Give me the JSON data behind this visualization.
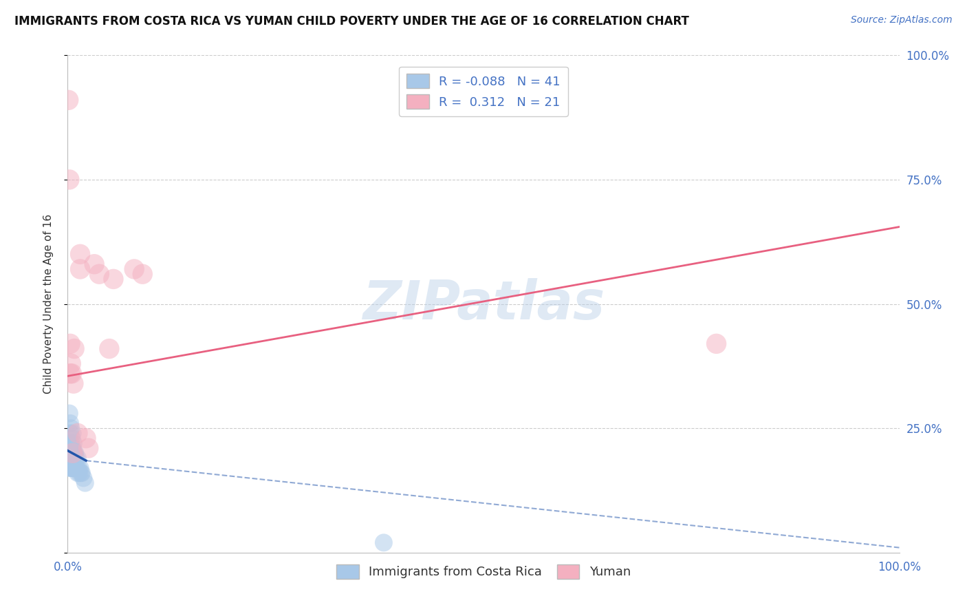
{
  "title": "IMMIGRANTS FROM COSTA RICA VS YUMAN CHILD POVERTY UNDER THE AGE OF 16 CORRELATION CHART",
  "source_text": "Source: ZipAtlas.com",
  "ylabel": "Child Poverty Under the Age of 16",
  "xlim": [
    0.0,
    1.0
  ],
  "ylim": [
    0.0,
    1.0
  ],
  "blue_R": -0.088,
  "blue_N": 41,
  "pink_R": 0.312,
  "pink_N": 21,
  "blue_color": "#a8c8e8",
  "pink_color": "#f4b0c0",
  "blue_line_color": "#2255aa",
  "pink_line_color": "#e86080",
  "grid_color": "#cccccc",
  "watermark": "ZIPatlas",
  "blue_scatter_x": [
    0.001,
    0.001,
    0.002,
    0.002,
    0.002,
    0.003,
    0.003,
    0.003,
    0.003,
    0.004,
    0.004,
    0.004,
    0.004,
    0.005,
    0.005,
    0.005,
    0.005,
    0.006,
    0.006,
    0.006,
    0.006,
    0.007,
    0.007,
    0.007,
    0.008,
    0.008,
    0.009,
    0.009,
    0.01,
    0.01,
    0.011,
    0.012,
    0.012,
    0.013,
    0.014,
    0.015,
    0.016,
    0.017,
    0.019,
    0.021,
    0.38
  ],
  "blue_scatter_y": [
    0.19,
    0.21,
    0.17,
    0.22,
    0.28,
    0.19,
    0.21,
    0.24,
    0.26,
    0.17,
    0.19,
    0.22,
    0.25,
    0.17,
    0.19,
    0.21,
    0.23,
    0.17,
    0.19,
    0.21,
    0.24,
    0.17,
    0.2,
    0.22,
    0.17,
    0.2,
    0.17,
    0.2,
    0.17,
    0.19,
    0.17,
    0.16,
    0.19,
    0.17,
    0.16,
    0.17,
    0.16,
    0.16,
    0.15,
    0.14,
    0.02
  ],
  "pink_scatter_x": [
    0.001,
    0.002,
    0.003,
    0.004,
    0.005,
    0.007,
    0.015,
    0.015,
    0.022,
    0.025,
    0.032,
    0.038,
    0.05,
    0.055,
    0.08,
    0.09,
    0.78,
    0.003,
    0.006,
    0.008,
    0.012
  ],
  "pink_scatter_y": [
    0.91,
    0.75,
    0.42,
    0.38,
    0.36,
    0.34,
    0.57,
    0.6,
    0.23,
    0.21,
    0.58,
    0.56,
    0.41,
    0.55,
    0.57,
    0.56,
    0.42,
    0.36,
    0.2,
    0.41,
    0.24
  ],
  "pink_line_x0": 0.0,
  "pink_line_y0": 0.355,
  "pink_line_x1": 1.0,
  "pink_line_y1": 0.655,
  "blue_line_solid_x0": 0.0,
  "blue_line_solid_y0": 0.205,
  "blue_line_solid_x1": 0.022,
  "blue_line_solid_y1": 0.185,
  "blue_line_dash_x0": 0.022,
  "blue_line_dash_y0": 0.185,
  "blue_line_dash_x1": 1.0,
  "blue_line_dash_y1": 0.01,
  "legend_label_blue": "Immigrants from Costa Rica",
  "legend_label_pink": "Yuman"
}
